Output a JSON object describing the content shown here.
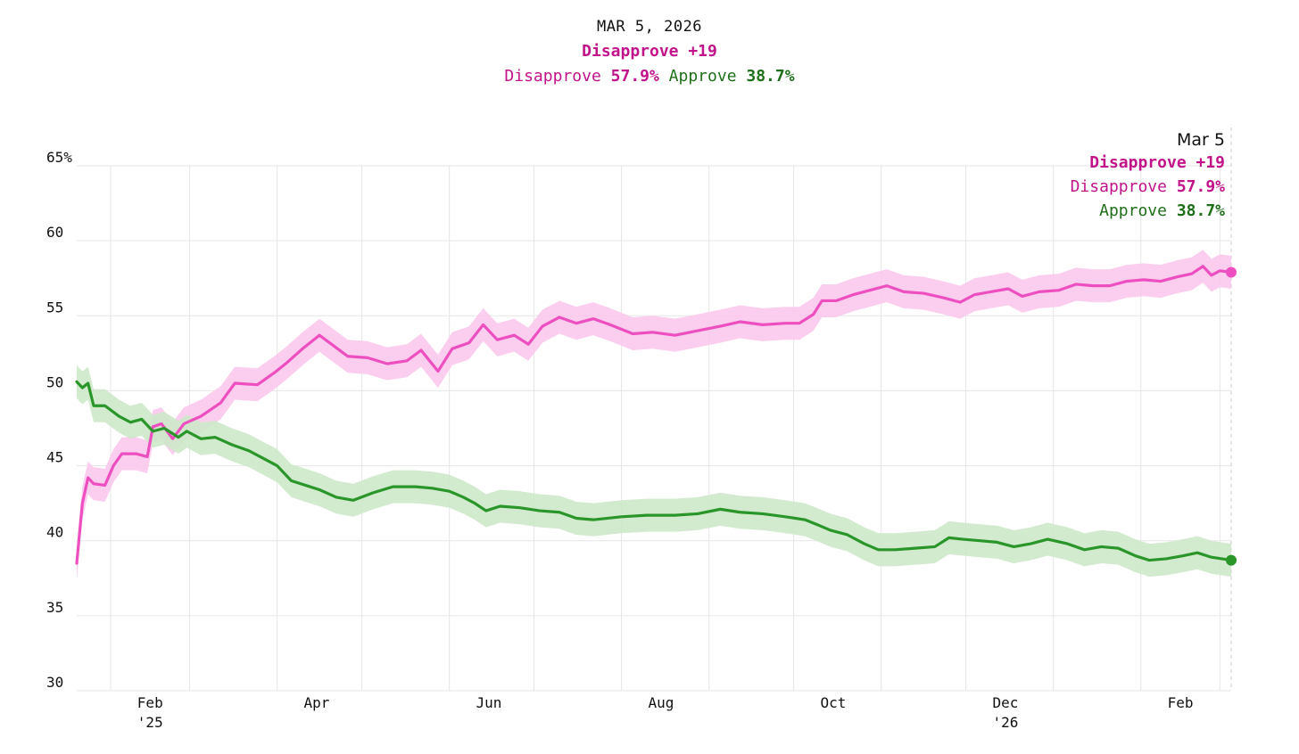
{
  "header": {
    "date": "MAR 5, 2026",
    "net": "Disapprove +19",
    "disapprove_label": "Disapprove",
    "disapprove_value": "57.9%",
    "approve_label": "Approve",
    "approve_value": "38.7%"
  },
  "tooltip": {
    "date": "Mar 5",
    "net": "Disapprove +19",
    "disapprove_label": "Disapprove",
    "disapprove_value": "57.9%",
    "approve_label": "Approve",
    "approve_value": "38.7%"
  },
  "chart_data": {
    "type": "line",
    "title": "",
    "xlabel": "",
    "ylabel": "",
    "ylim": [
      30,
      65
    ],
    "y_ticks": [
      "30",
      "35",
      "40",
      "45",
      "50",
      "55",
      "60",
      "65%"
    ],
    "x_ticks": [
      {
        "month": "Feb",
        "year": "'25"
      },
      {
        "month": "Apr",
        "year": ""
      },
      {
        "month": "Jun",
        "year": ""
      },
      {
        "month": "Aug",
        "year": ""
      },
      {
        "month": "Oct",
        "year": ""
      },
      {
        "month": "Dec",
        "year": "'26"
      },
      {
        "month": "Feb",
        "year": ""
      }
    ],
    "x_range": [
      "2025-01-20",
      "2026-03-05"
    ],
    "band_half_width": 1.1,
    "series": [
      {
        "name": "Disapprove",
        "color": "#ee4fc0",
        "band_color": "#fbc8ec",
        "points": [
          [
            "2025-01-20",
            38.5
          ],
          [
            "2025-01-22",
            42.5
          ],
          [
            "2025-01-24",
            44.2
          ],
          [
            "2025-01-26",
            43.8
          ],
          [
            "2025-01-30",
            43.7
          ],
          [
            "2025-02-02",
            45.0
          ],
          [
            "2025-02-05",
            45.8
          ],
          [
            "2025-02-10",
            45.8
          ],
          [
            "2025-02-14",
            45.6
          ],
          [
            "2025-02-16",
            47.6
          ],
          [
            "2025-02-19",
            47.8
          ],
          [
            "2025-02-23",
            46.8
          ],
          [
            "2025-02-27",
            47.8
          ],
          [
            "2025-03-05",
            48.3
          ],
          [
            "2025-03-12",
            49.2
          ],
          [
            "2025-03-17",
            50.5
          ],
          [
            "2025-03-25",
            50.4
          ],
          [
            "2025-03-31",
            51.2
          ],
          [
            "2025-04-04",
            51.8
          ],
          [
            "2025-04-10",
            52.8
          ],
          [
            "2025-04-16",
            53.7
          ],
          [
            "2025-04-21",
            53.0
          ],
          [
            "2025-04-26",
            52.3
          ],
          [
            "2025-05-03",
            52.2
          ],
          [
            "2025-05-10",
            51.8
          ],
          [
            "2025-05-17",
            52.0
          ],
          [
            "2025-05-22",
            52.7
          ],
          [
            "2025-05-28",
            51.3
          ],
          [
            "2025-06-02",
            52.8
          ],
          [
            "2025-06-08",
            53.2
          ],
          [
            "2025-06-13",
            54.4
          ],
          [
            "2025-06-18",
            53.4
          ],
          [
            "2025-06-24",
            53.7
          ],
          [
            "2025-06-29",
            53.1
          ],
          [
            "2025-07-04",
            54.3
          ],
          [
            "2025-07-10",
            54.9
          ],
          [
            "2025-07-16",
            54.5
          ],
          [
            "2025-07-22",
            54.8
          ],
          [
            "2025-07-28",
            54.4
          ],
          [
            "2025-08-05",
            53.8
          ],
          [
            "2025-08-12",
            53.9
          ],
          [
            "2025-08-20",
            53.7
          ],
          [
            "2025-08-28",
            54.0
          ],
          [
            "2025-09-05",
            54.3
          ],
          [
            "2025-09-12",
            54.6
          ],
          [
            "2025-09-20",
            54.4
          ],
          [
            "2025-09-28",
            54.5
          ],
          [
            "2025-10-03",
            54.5
          ],
          [
            "2025-10-08",
            55.1
          ],
          [
            "2025-10-11",
            56.0
          ],
          [
            "2025-10-16",
            56.0
          ],
          [
            "2025-10-22",
            56.4
          ],
          [
            "2025-10-28",
            56.7
          ],
          [
            "2025-11-03",
            57.0
          ],
          [
            "2025-11-09",
            56.6
          ],
          [
            "2025-11-16",
            56.5
          ],
          [
            "2025-11-23",
            56.2
          ],
          [
            "2025-11-29",
            55.9
          ],
          [
            "2025-12-04",
            56.4
          ],
          [
            "2025-12-10",
            56.6
          ],
          [
            "2025-12-16",
            56.8
          ],
          [
            "2025-12-21",
            56.3
          ],
          [
            "2025-12-27",
            56.6
          ],
          [
            "2026-01-03",
            56.7
          ],
          [
            "2026-01-09",
            57.1
          ],
          [
            "2026-01-15",
            57.0
          ],
          [
            "2026-01-21",
            57.0
          ],
          [
            "2026-01-27",
            57.3
          ],
          [
            "2026-02-02",
            57.4
          ],
          [
            "2026-02-08",
            57.3
          ],
          [
            "2026-02-14",
            57.6
          ],
          [
            "2026-02-19",
            57.8
          ],
          [
            "2026-02-23",
            58.3
          ],
          [
            "2026-02-26",
            57.7
          ],
          [
            "2026-03-01",
            58.0
          ],
          [
            "2026-03-05",
            57.9
          ]
        ]
      },
      {
        "name": "Approve",
        "color": "#2a962a",
        "band_color": "#cde8c9",
        "points": [
          [
            "2025-01-20",
            50.6
          ],
          [
            "2025-01-22",
            50.2
          ],
          [
            "2025-01-24",
            50.5
          ],
          [
            "2025-01-26",
            49.0
          ],
          [
            "2025-01-30",
            49.0
          ],
          [
            "2025-02-04",
            48.3
          ],
          [
            "2025-02-08",
            47.9
          ],
          [
            "2025-02-12",
            48.1
          ],
          [
            "2025-02-16",
            47.3
          ],
          [
            "2025-02-20",
            47.5
          ],
          [
            "2025-02-25",
            46.9
          ],
          [
            "2025-02-28",
            47.3
          ],
          [
            "2025-03-05",
            46.8
          ],
          [
            "2025-03-10",
            46.9
          ],
          [
            "2025-03-16",
            46.4
          ],
          [
            "2025-03-22",
            46.0
          ],
          [
            "2025-03-26",
            45.6
          ],
          [
            "2025-04-01",
            45.0
          ],
          [
            "2025-04-06",
            44.0
          ],
          [
            "2025-04-11",
            43.7
          ],
          [
            "2025-04-16",
            43.4
          ],
          [
            "2025-04-22",
            42.9
          ],
          [
            "2025-04-28",
            42.7
          ],
          [
            "2025-05-05",
            43.2
          ],
          [
            "2025-05-12",
            43.6
          ],
          [
            "2025-05-20",
            43.6
          ],
          [
            "2025-05-26",
            43.5
          ],
          [
            "2025-06-01",
            43.3
          ],
          [
            "2025-06-06",
            42.9
          ],
          [
            "2025-06-10",
            42.5
          ],
          [
            "2025-06-14",
            42.0
          ],
          [
            "2025-06-19",
            42.3
          ],
          [
            "2025-06-26",
            42.2
          ],
          [
            "2025-07-03",
            42.0
          ],
          [
            "2025-07-10",
            41.9
          ],
          [
            "2025-07-16",
            41.5
          ],
          [
            "2025-07-22",
            41.4
          ],
          [
            "2025-08-01",
            41.6
          ],
          [
            "2025-08-10",
            41.7
          ],
          [
            "2025-08-20",
            41.7
          ],
          [
            "2025-08-28",
            41.8
          ],
          [
            "2025-09-05",
            42.1
          ],
          [
            "2025-09-12",
            41.9
          ],
          [
            "2025-09-20",
            41.8
          ],
          [
            "2025-09-28",
            41.6
          ],
          [
            "2025-10-05",
            41.4
          ],
          [
            "2025-10-09",
            41.1
          ],
          [
            "2025-10-14",
            40.7
          ],
          [
            "2025-10-20",
            40.4
          ],
          [
            "2025-10-26",
            39.8
          ],
          [
            "2025-10-31",
            39.4
          ],
          [
            "2025-11-06",
            39.4
          ],
          [
            "2025-11-13",
            39.5
          ],
          [
            "2025-11-20",
            39.6
          ],
          [
            "2025-11-25",
            40.2
          ],
          [
            "2025-11-30",
            40.1
          ],
          [
            "2025-12-06",
            40.0
          ],
          [
            "2025-12-12",
            39.9
          ],
          [
            "2025-12-18",
            39.6
          ],
          [
            "2025-12-24",
            39.8
          ],
          [
            "2025-12-30",
            40.1
          ],
          [
            "2026-01-06",
            39.8
          ],
          [
            "2026-01-12",
            39.4
          ],
          [
            "2026-01-18",
            39.6
          ],
          [
            "2026-01-24",
            39.5
          ],
          [
            "2026-01-30",
            39.0
          ],
          [
            "2026-02-04",
            38.7
          ],
          [
            "2026-02-10",
            38.8
          ],
          [
            "2026-02-16",
            39.0
          ],
          [
            "2026-02-21",
            39.2
          ],
          [
            "2026-02-26",
            38.9
          ],
          [
            "2026-03-05",
            38.7
          ]
        ]
      }
    ],
    "grid": true
  }
}
